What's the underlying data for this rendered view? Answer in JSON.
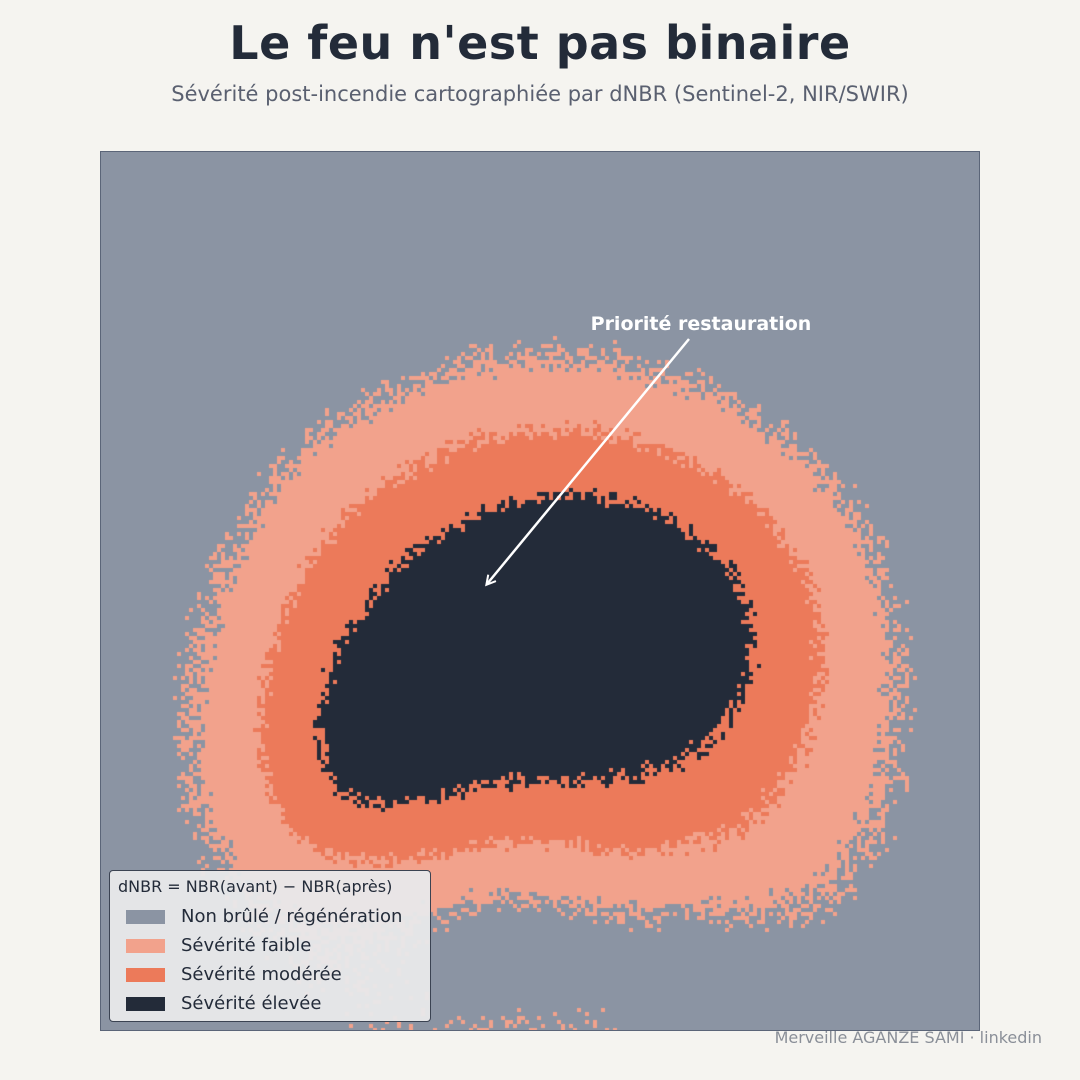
{
  "title": "Le feu n'est pas binaire",
  "subtitle": "Sévérité post-incendie cartographiée par dNBR (Sentinel-2, NIR/SWIR)",
  "map": {
    "annotation": "Priorité restauration"
  },
  "legend": {
    "title": "dNBR = NBR(avant) − NBR(après)",
    "items": [
      {
        "label": "Non brûlé / régénération",
        "color": "#8b94a3"
      },
      {
        "label": "Sévérité faible",
        "color": "#f2a28c"
      },
      {
        "label": "Sévérité modérée",
        "color": "#ec7a5a"
      },
      {
        "label": "Sévérité élevée",
        "color": "#232b39"
      }
    ]
  },
  "credit": "Merveille AGANZE SAMI · linkedin"
}
